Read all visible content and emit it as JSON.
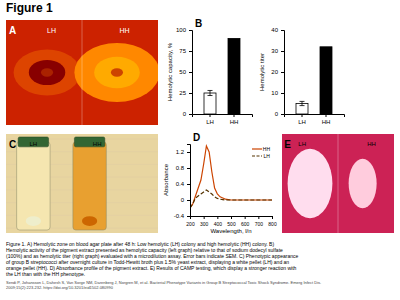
{
  "title": "Figure 1",
  "annotations": [
    [
      "Figure 1. A) Hemolytic zone on blood agar plate after 48 h: Low hemolytic (LH) colony and high hemolytic (HH) colony. B)",
      "Hemolytic activity of the pigment extract presented as hemolytic capacity (left graph) relative to that of sodium dodecyl sulfate",
      "(100%) and as hemolytic titer (right graph) evaluated with a microdilution assay. Error bars indicate SEM. C) Phenotypic appearance",
      "of group B streptococci after overnight culture in Todd-Hewitt broth plus 1.5% yeast extract, displaying a white pellet (LH) and an",
      "orange pellet (HH). D) Absorbance profile of the pigment extract. E) Results of CAMP testing, which display a stronger reaction with",
      "the LH than with the HH phenotype."
    ],
    [
      "Sendi P, Johansson L, Dahesh S, Van Sorge NM, Darenberg J, Norgren M, et al. Bacterial Phenotype Variants in Group B Streptococcal Toxic Shock Syndrome. Emerg Infect Dis.",
      "2009;15(2):223-232. https://doi.org/10.3201/eid1502.080990"
    ]
  ],
  "chart_data": [
    {
      "type": "image",
      "title": "A",
      "annotations": [
        "LH",
        "HH"
      ]
    },
    {
      "type": "bar",
      "title": "B",
      "categories": [
        "LH",
        "HH"
      ],
      "values": [
        25,
        90
      ],
      "errors": [
        3,
        null
      ],
      "colors": [
        "white",
        "black"
      ],
      "ylabel": "Hemolytic capacity, %",
      "ylim": [
        0,
        100
      ],
      "yticks": [
        0,
        25,
        50,
        75,
        100
      ]
    },
    {
      "type": "bar",
      "categories": [
        "LH",
        "HH"
      ],
      "values": [
        5,
        32
      ],
      "errors": [
        1,
        null
      ],
      "colors": [
        "white",
        "black"
      ],
      "ylabel": "Hemolytic titer",
      "ylim": [
        0,
        40
      ],
      "yticks": [
        0,
        10,
        20,
        30,
        40
      ]
    },
    {
      "type": "image",
      "title": "C",
      "annotations": [
        "LH",
        "HH"
      ]
    },
    {
      "type": "line",
      "title": "D",
      "x": [
        200,
        220,
        240,
        260,
        280,
        300,
        320,
        340,
        360,
        380,
        400,
        420,
        440,
        460,
        480,
        500,
        520,
        540,
        560,
        580,
        600,
        620,
        640,
        660,
        680,
        700,
        720,
        740,
        760,
        780,
        800
      ],
      "series": [
        {
          "name": "HH",
          "color": "#cc4400",
          "line_style": "solid",
          "values": [
            -0.2,
            -0.1,
            0.1,
            0.3,
            0.5,
            0.9,
            1.35,
            1.2,
            0.7,
            0.3,
            0.15,
            0.08,
            0.05,
            0.02,
            0.01,
            0.0,
            0.0,
            0.0,
            0.0,
            0.0,
            0.0,
            0.0,
            0.0,
            0.0,
            0.0,
            0.0,
            0.0,
            0.0,
            0.0,
            0.0,
            0.0
          ]
        },
        {
          "name": "LH",
          "color": "#553300",
          "line_style": "dashed",
          "values": [
            -0.2,
            -0.1,
            0.05,
            0.1,
            0.15,
            0.2,
            0.25,
            0.2,
            0.15,
            0.08,
            0.04,
            0.02,
            0.01,
            0.0,
            0.0,
            0.0,
            0.0,
            0.0,
            0.0,
            0.0,
            0.0,
            0.0,
            0.0,
            0.0,
            0.0,
            0.0,
            0.0,
            0.0,
            0.0,
            0.0,
            0.0
          ]
        }
      ],
      "xlabel": "Wavelength, l/n",
      "ylabel": "Absorbance",
      "xlim": [
        200,
        800
      ],
      "ylim": [
        -0.4,
        1.4
      ],
      "xticks": [
        200,
        300,
        400,
        500,
        600,
        700,
        800
      ],
      "yticks": [
        -0.4,
        0,
        0.4,
        0.8,
        1.2
      ],
      "legend": "upper right"
    },
    {
      "type": "image",
      "title": "E",
      "annotations": [
        "LH",
        "HH"
      ]
    }
  ]
}
